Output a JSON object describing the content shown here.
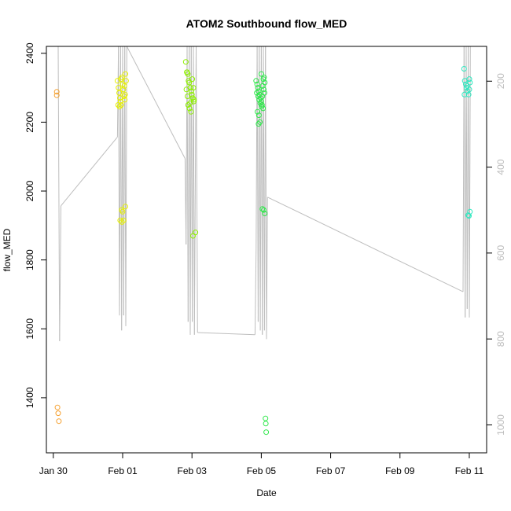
{
  "chart_data": {
    "type": "scatter",
    "title": "ATOM2 Southbound flow_MED",
    "xlabel": "Date",
    "ylabel": "flow_MED",
    "xlim": [
      -0.2,
      12.5
    ],
    "ylim": [
      1240,
      2420
    ],
    "y2lim": [
      1065,
      119
    ],
    "x_ticks": [
      {
        "value": 0,
        "label": "Jan 30"
      },
      {
        "value": 2,
        "label": "Feb 01"
      },
      {
        "value": 4,
        "label": "Feb 03"
      },
      {
        "value": 6,
        "label": "Feb 05"
      },
      {
        "value": 8,
        "label": "Feb 07"
      },
      {
        "value": 10,
        "label": "Feb 09"
      },
      {
        "value": 12,
        "label": "Feb 11"
      }
    ],
    "y_ticks": [
      1400,
      1600,
      1800,
      2000,
      2200,
      2400
    ],
    "y2_ticks": [
      200,
      400,
      600,
      800,
      1000
    ],
    "colors": {
      "jan30": "#f5a030",
      "feb01": "#e6f000",
      "feb03": "#8ef000",
      "feb05": "#2ee84a",
      "feb11": "#30e8c0",
      "line": "#bebebe"
    },
    "series": [
      {
        "name": "Jan 30",
        "color_key": "jan30",
        "points": [
          [
            0.1,
            2288
          ],
          [
            0.1,
            2278
          ],
          [
            0.12,
            1372
          ],
          [
            0.14,
            1355
          ],
          [
            0.16,
            1332
          ]
        ]
      },
      {
        "name": "Feb 01",
        "color_key": "feb01",
        "points": [
          [
            1.85,
            2320
          ],
          [
            1.88,
            2300
          ],
          [
            1.9,
            2285
          ],
          [
            1.92,
            2270
          ],
          [
            1.94,
            2260
          ],
          [
            1.96,
            2250
          ],
          [
            1.98,
            2330
          ],
          [
            2.0,
            2310
          ],
          [
            2.02,
            2295
          ],
          [
            2.04,
            2275
          ],
          [
            2.06,
            2265
          ],
          [
            2.08,
            2340
          ],
          [
            2.1,
            2320
          ],
          [
            1.87,
            2250
          ],
          [
            1.91,
            2245
          ],
          [
            1.95,
            2325
          ],
          [
            2.05,
            2305
          ],
          [
            2.07,
            2280
          ],
          [
            1.97,
            1945
          ],
          [
            2.0,
            1940
          ],
          [
            2.08,
            1955
          ],
          [
            1.93,
            1915
          ],
          [
            1.98,
            1910
          ],
          [
            2.03,
            1915
          ]
        ]
      },
      {
        "name": "Feb 03",
        "color_key": "feb03",
        "points": [
          [
            3.82,
            2375
          ],
          [
            3.85,
            2345
          ],
          [
            3.88,
            2340
          ],
          [
            3.9,
            2320
          ],
          [
            3.92,
            2315
          ],
          [
            3.95,
            2300
          ],
          [
            3.98,
            2290
          ],
          [
            4.0,
            2280
          ],
          [
            4.02,
            2270
          ],
          [
            4.05,
            2260
          ],
          [
            3.84,
            2295
          ],
          [
            3.87,
            2275
          ],
          [
            3.89,
            2250
          ],
          [
            3.93,
            2240
          ],
          [
            3.97,
            2230
          ],
          [
            4.01,
            2325
          ],
          [
            4.04,
            2300
          ],
          [
            4.06,
            2265
          ],
          [
            3.86,
            2345
          ],
          [
            3.94,
            2255
          ],
          [
            4.03,
            1870
          ],
          [
            4.1,
            1880
          ]
        ]
      },
      {
        "name": "Feb 05",
        "color_key": "feb05",
        "points": [
          [
            5.85,
            2320
          ],
          [
            5.88,
            2310
          ],
          [
            5.9,
            2300
          ],
          [
            5.92,
            2290
          ],
          [
            5.95,
            2280
          ],
          [
            5.98,
            2270
          ],
          [
            6.0,
            2260
          ],
          [
            6.02,
            2250
          ],
          [
            6.05,
            2240
          ],
          [
            6.08,
            2330
          ],
          [
            6.1,
            2315
          ],
          [
            5.87,
            2285
          ],
          [
            5.91,
            2275
          ],
          [
            5.94,
            2265
          ],
          [
            5.97,
            2255
          ],
          [
            6.01,
            2245
          ],
          [
            6.04,
            2305
          ],
          [
            6.07,
            2295
          ],
          [
            5.89,
            2230
          ],
          [
            5.93,
            2220
          ],
          [
            5.96,
            2200
          ],
          [
            5.92,
            2195
          ],
          [
            6.03,
            2275
          ],
          [
            6.06,
            2325
          ],
          [
            6.09,
            2285
          ],
          [
            6.0,
            2340
          ],
          [
            6.03,
            1948
          ],
          [
            6.07,
            1945
          ],
          [
            6.1,
            1935
          ],
          [
            6.12,
            1340
          ],
          [
            6.13,
            1325
          ],
          [
            6.14,
            1300
          ]
        ]
      },
      {
        "name": "Feb 11",
        "color_key": "feb11",
        "points": [
          [
            11.85,
            2355
          ],
          [
            11.87,
            2320
          ],
          [
            11.9,
            2310
          ],
          [
            11.92,
            2300
          ],
          [
            11.95,
            2290
          ],
          [
            11.98,
            2280
          ],
          [
            12.0,
            2325
          ],
          [
            12.02,
            2315
          ],
          [
            11.86,
            2280
          ],
          [
            11.94,
            2305
          ],
          [
            12.0,
            2295
          ],
          [
            11.97,
            1930
          ],
          [
            12.02,
            1940
          ],
          [
            11.99,
            1928
          ]
        ]
      }
    ],
    "line_x": [
      0.14,
      0.18,
      0.22,
      1.85,
      1.88,
      1.91,
      1.94,
      1.97,
      2.0,
      2.03,
      2.06,
      2.09,
      2.12,
      3.8,
      3.83,
      3.86,
      3.89,
      3.92,
      3.95,
      3.98,
      4.01,
      4.04,
      4.07,
      4.12,
      4.16,
      5.82,
      5.85,
      5.88,
      5.91,
      5.94,
      5.97,
      6.0,
      6.03,
      6.06,
      6.09,
      6.12,
      6.15,
      6.18,
      11.82,
      11.85,
      11.88,
      11.91,
      11.94,
      11.97,
      12.0,
      12.03
    ],
    "line_y2": [
      119,
      805,
      490,
      330,
      119,
      745,
      119,
      780,
      119,
      745,
      119,
      770,
      119,
      380,
      580,
      119,
      760,
      119,
      790,
      119,
      760,
      119,
      790,
      119,
      785,
      790,
      590,
      119,
      760,
      119,
      780,
      119,
      790,
      119,
      780,
      119,
      800,
      470,
      690,
      119,
      750,
      119,
      730,
      119,
      750,
      119
    ]
  }
}
